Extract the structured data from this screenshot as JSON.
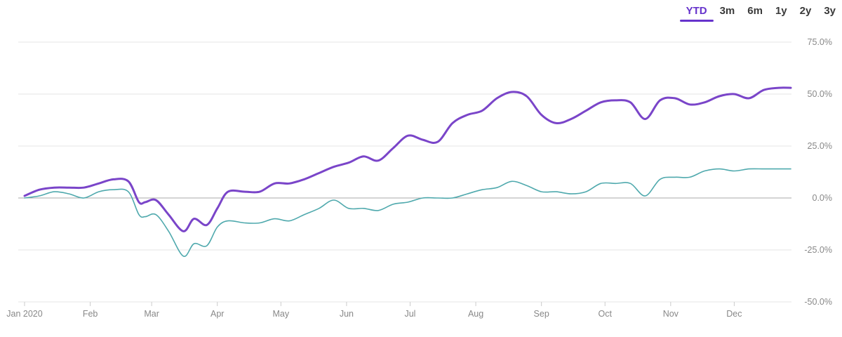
{
  "range_tabs": [
    {
      "label": "YTD",
      "active": true
    },
    {
      "label": "3m",
      "active": false
    },
    {
      "label": "6m",
      "active": false
    },
    {
      "label": "1y",
      "active": false
    },
    {
      "label": "2y",
      "active": false
    },
    {
      "label": "3y",
      "active": false
    }
  ],
  "colors": {
    "accent": "#6633cc",
    "series_primary": "#7a45c9",
    "series_secondary": "#4fa9ad",
    "grid": "#e6e6e6",
    "zero_line": "#aaaaaa",
    "tick_text": "#888888"
  },
  "chart_data": {
    "type": "line",
    "title": "",
    "xlabel": "",
    "ylabel": "",
    "ylim": [
      -50,
      75
    ],
    "xlim": [
      "2020-01-01",
      "2021-01-01"
    ],
    "grid": true,
    "y_ticks": [
      75,
      50,
      25,
      0,
      -25,
      -50
    ],
    "y_tick_labels": [
      "75.0%",
      "50.0%",
      "25.0%",
      "0.0%",
      "-25.0%",
      "-50.0%"
    ],
    "x_ticks": [
      "2020-01-01",
      "2020-02-01",
      "2020-03-01",
      "2020-04-01",
      "2020-05-01",
      "2020-06-01",
      "2020-07-01",
      "2020-08-01",
      "2020-09-01",
      "2020-10-01",
      "2020-11-01",
      "2020-12-01"
    ],
    "x_tick_labels": [
      "Jan 2020",
      "Feb",
      "Mar",
      "Apr",
      "May",
      "Jun",
      "Jul",
      "Aug",
      "Sep",
      "Oct",
      "Nov",
      "Dec"
    ],
    "series": [
      {
        "color": "#7a45c9",
        "dates": [
          "2020-01-01",
          "2020-01-08",
          "2020-01-15",
          "2020-01-22",
          "2020-01-29",
          "2020-02-05",
          "2020-02-12",
          "2020-02-19",
          "2020-02-24",
          "2020-02-27",
          "2020-03-03",
          "2020-03-09",
          "2020-03-16",
          "2020-03-21",
          "2020-03-27",
          "2020-04-01",
          "2020-04-06",
          "2020-04-14",
          "2020-04-21",
          "2020-04-28",
          "2020-05-05",
          "2020-05-12",
          "2020-05-19",
          "2020-05-26",
          "2020-06-02",
          "2020-06-09",
          "2020-06-16",
          "2020-06-23",
          "2020-06-30",
          "2020-07-07",
          "2020-07-14",
          "2020-07-21",
          "2020-07-28",
          "2020-08-04",
          "2020-08-11",
          "2020-08-18",
          "2020-08-25",
          "2020-09-01",
          "2020-09-08",
          "2020-09-15",
          "2020-09-22",
          "2020-09-29",
          "2020-10-06",
          "2020-10-13",
          "2020-10-20",
          "2020-10-27",
          "2020-11-03",
          "2020-11-10",
          "2020-11-17",
          "2020-11-24",
          "2020-12-01",
          "2020-12-08",
          "2020-12-15",
          "2020-12-22",
          "2020-12-28"
        ],
        "values": [
          1,
          4,
          5,
          5,
          5,
          7,
          9,
          8,
          -2,
          -2,
          -1,
          -8,
          -16,
          -10,
          -13,
          -5,
          3,
          3,
          3,
          7,
          7,
          9,
          12,
          15,
          17,
          20,
          18,
          24,
          30,
          28,
          27,
          36,
          40,
          42,
          48,
          51,
          49,
          40,
          36,
          38,
          42,
          46,
          47,
          46,
          38,
          47,
          48,
          45,
          46,
          49,
          50,
          48,
          52,
          53,
          53
        ]
      },
      {
        "color": "#4fa9ad",
        "dates": [
          "2020-01-01",
          "2020-01-08",
          "2020-01-15",
          "2020-01-22",
          "2020-01-29",
          "2020-02-05",
          "2020-02-12",
          "2020-02-19",
          "2020-02-24",
          "2020-02-27",
          "2020-03-03",
          "2020-03-09",
          "2020-03-16",
          "2020-03-21",
          "2020-03-27",
          "2020-04-01",
          "2020-04-06",
          "2020-04-14",
          "2020-04-21",
          "2020-04-28",
          "2020-05-05",
          "2020-05-12",
          "2020-05-19",
          "2020-05-26",
          "2020-06-02",
          "2020-06-09",
          "2020-06-16",
          "2020-06-23",
          "2020-06-30",
          "2020-07-07",
          "2020-07-14",
          "2020-07-21",
          "2020-07-28",
          "2020-08-04",
          "2020-08-11",
          "2020-08-18",
          "2020-08-25",
          "2020-09-01",
          "2020-09-08",
          "2020-09-15",
          "2020-09-22",
          "2020-09-29",
          "2020-10-06",
          "2020-10-13",
          "2020-10-20",
          "2020-10-27",
          "2020-11-03",
          "2020-11-10",
          "2020-11-17",
          "2020-11-24",
          "2020-12-01",
          "2020-12-08",
          "2020-12-15",
          "2020-12-22",
          "2020-12-28"
        ],
        "values": [
          0,
          1,
          3,
          2,
          0,
          3,
          4,
          3,
          -8,
          -9,
          -8,
          -16,
          -28,
          -22,
          -23,
          -14,
          -11,
          -12,
          -12,
          -10,
          -11,
          -8,
          -5,
          -1,
          -5,
          -5,
          -6,
          -3,
          -2,
          0,
          0,
          0,
          2,
          4,
          5,
          8,
          6,
          3,
          3,
          2,
          3,
          7,
          7,
          7,
          1,
          9,
          10,
          10,
          13,
          14,
          13,
          14,
          14,
          14,
          14
        ]
      }
    ]
  }
}
